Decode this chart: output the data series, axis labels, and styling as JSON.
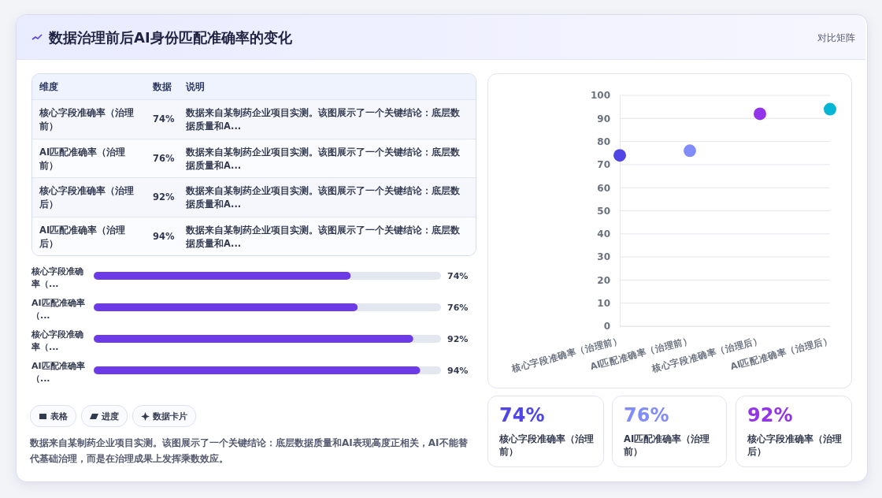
{
  "chart_data": [
    {
      "type": "other",
      "title": "数据治理前后AI身份匹配准确率的变化",
      "annotations": [
        "对比矩阵",
        "表格",
        "进度",
        "数据卡片",
        "数据来自某制药企业项目实测。该图展示了一个关键结论：底层数据质量和AI表现高度正相关，AI不能替代基础治理，而是在治理成果上发挥乘数效应。"
      ]
    },
    {
      "type": "other",
      "annotations": [
        "维度",
        "数据",
        "说明",
        "数据来自某制药企业项目实测。该图展示了一个关键结论：底层数据质量和A...",
        "数据来自某制药企业项目实测。该图展示了一个关键结论：底层数据质量和A...",
        "数据来自某制药企业项目实测。该图展示了一个关键结论：底层数据质量和A...",
        "数据来自某制药企业项目实测。该图展示了一个关键结论：底层数据质量和A..."
      ],
      "categories": [
        "核心字段准确率（治理前）",
        "AI匹配准确率（治理前）",
        "核心字段准确率（治理后）",
        "AI匹配准确率（治理后）"
      ],
      "value_labels": [
        "74%",
        "76%",
        "92%",
        "94%"
      ]
    },
    {
      "type": "bar",
      "orientation": "horizontal",
      "categories": [
        "核心字段准确率（...",
        "AI匹配准确率（...",
        "核心字段准确率（...",
        "AI匹配准确率（..."
      ],
      "values": [
        74,
        76,
        92,
        94
      ],
      "value_labels": [
        "74%",
        "76%",
        "92%",
        "94%"
      ],
      "color": "#6d3ae8",
      "xlim": [
        0,
        100
      ],
      "tick_labels": "y"
    },
    {
      "type": "scatter",
      "categories": [
        "核心字段准确率（治理前）",
        "AI匹配准确率（治理前）",
        "核心字段准确率（治理后）",
        "AI匹配准确率（治理后）"
      ],
      "values": [
        74,
        76,
        92,
        94
      ],
      "colors": [
        "#4f46e5",
        "#818cf8",
        "#9333ea",
        "#06b6d4"
      ],
      "ylim": [
        0,
        100
      ],
      "yticks": [
        0,
        10,
        20,
        30,
        40,
        50,
        60,
        70,
        80,
        90,
        100
      ],
      "grid": "y",
      "marker": "circle"
    },
    {
      "type": "other",
      "categories": [
        "核心字段准确率（治理前）",
        "AI匹配准确率（治理前）",
        "核心字段准确率（治理后）"
      ],
      "value_labels": [
        "74%",
        "76%",
        "92%"
      ]
    }
  ]
}
